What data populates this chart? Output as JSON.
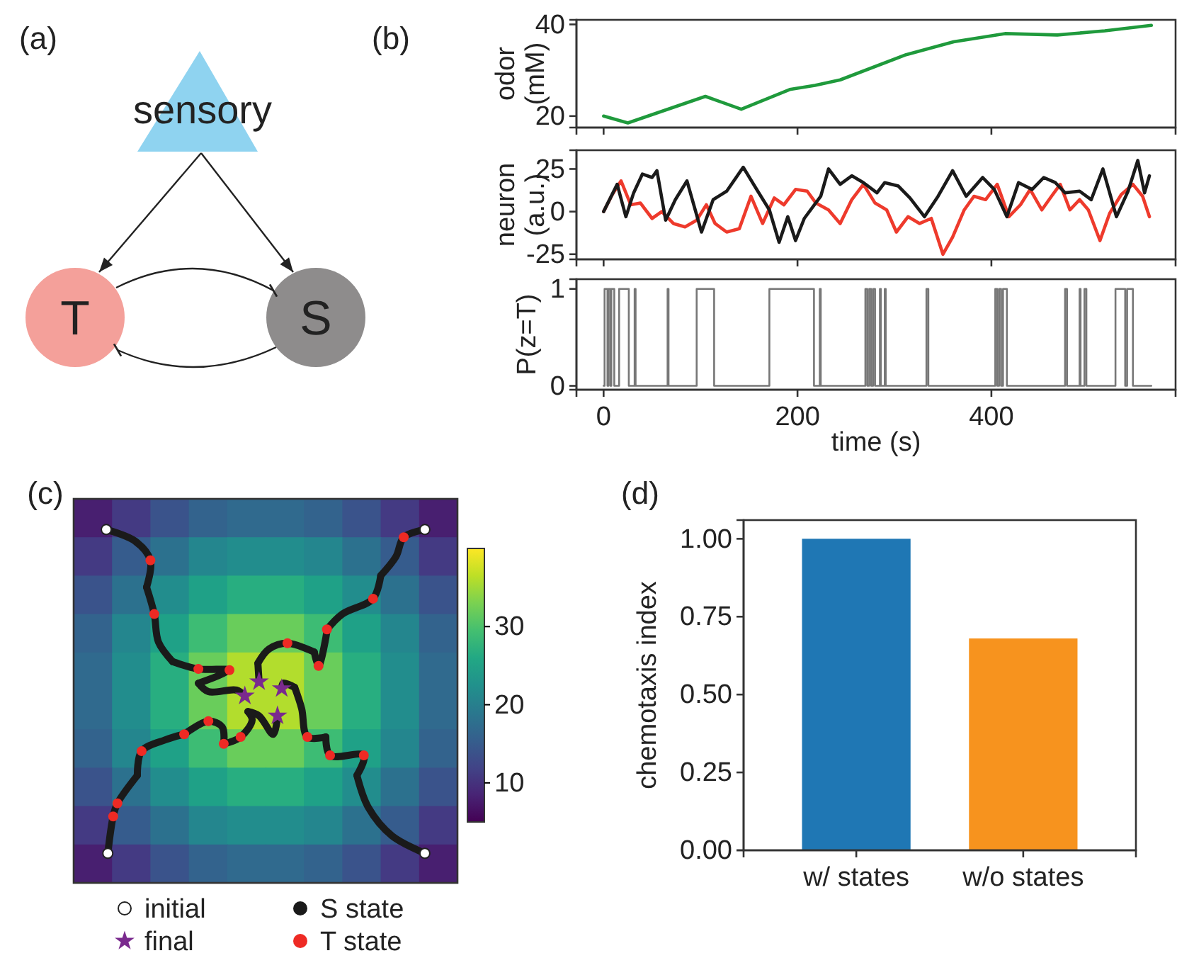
{
  "chart_data": [
    {
      "type": "other",
      "title": "(a)",
      "annotations": [
        "sensory",
        "T",
        "S"
      ]
    },
    {
      "type": "line",
      "title": "(b)",
      "ylabel": "odor (mM)",
      "xlim": [
        -28,
        590
      ],
      "ylim": [
        17.5,
        41
      ],
      "xticks": [
        0,
        200,
        400
      ],
      "yticks": [
        20,
        40
      ],
      "tick_labels": "y",
      "series": [
        {
          "color": "#1f9a3c",
          "x": [
            0,
            25,
            105,
            142,
            192,
            218,
            244,
            312,
            361,
            414,
            468,
            517,
            565
          ],
          "values": [
            20,
            18.5,
            24.3,
            21.5,
            25.8,
            26.7,
            27.9,
            33.4,
            36.2,
            38,
            37.7,
            38.6,
            39.8
          ]
        }
      ]
    },
    {
      "type": "line",
      "ylabel": "neuron (a.u.)",
      "xlim": [
        -28,
        590
      ],
      "ylim": [
        -28,
        36
      ],
      "xticks": [
        0,
        200,
        400
      ],
      "yticks": [
        -25,
        0,
        25
      ],
      "tick_labels": "y",
      "series": [
        {
          "color": "#ee3a2c",
          "x": [
            0,
            9,
            18,
            28,
            38,
            50,
            60,
            72,
            84,
            96,
            106,
            115,
            127,
            140,
            152,
            164,
            176,
            186,
            198,
            210,
            219,
            232,
            244,
            256,
            268,
            280,
            292,
            302,
            314,
            326,
            338,
            350,
            360,
            372,
            382,
            394,
            406,
            418,
            430,
            440,
            452,
            462,
            471,
            481,
            491,
            500,
            512,
            522,
            534,
            546,
            556,
            563
          ],
          "values": [
            0,
            10,
            18,
            4,
            5,
            -4,
            0,
            -7,
            -9,
            -5,
            4,
            -7,
            -12,
            -10,
            9,
            -7,
            8,
            4,
            13,
            12,
            5,
            1,
            -7,
            7,
            16,
            5,
            1,
            -12,
            -3,
            -7,
            -4,
            -25,
            -15,
            1,
            9,
            7,
            16,
            -3,
            4,
            13,
            1,
            9,
            16,
            1,
            7,
            1,
            -17,
            -1,
            10,
            16,
            9,
            -3
          ]
        },
        {
          "color": "#1a1a1a",
          "x": [
            0,
            14,
            23,
            31,
            40,
            50,
            55,
            64,
            74,
            86,
            101,
            113,
            127,
            144,
            159,
            171,
            181,
            190,
            198,
            207,
            224,
            232,
            244,
            256,
            268,
            282,
            290,
            304,
            316,
            331,
            345,
            360,
            374,
            391,
            403,
            416,
            428,
            442,
            454,
            466,
            476,
            491,
            503,
            515,
            529,
            541,
            551,
            558,
            563
          ],
          "values": [
            0,
            16,
            -3,
            11,
            22,
            20,
            24,
            -5,
            7,
            18,
            -12,
            7,
            12,
            26,
            12,
            1,
            -18,
            -3,
            -17,
            -4,
            9,
            25,
            16,
            21,
            17,
            11,
            17,
            15,
            8,
            -3,
            9,
            24,
            9,
            20,
            13,
            -3,
            17,
            13,
            20,
            17,
            11,
            12,
            7,
            25,
            -3,
            12,
            30,
            11,
            21
          ]
        }
      ]
    },
    {
      "type": "step",
      "ylabel": "P(z=T)",
      "xlabel": "time (s)",
      "xlim": [
        -28,
        590
      ],
      "ylim": [
        -0.04,
        1.1
      ],
      "xticks": [
        0,
        200,
        400
      ],
      "yticks": [
        0,
        1
      ],
      "series": [
        {
          "color": "#777777",
          "x": [
            0,
            1,
            4,
            5,
            7,
            8,
            11,
            16,
            26,
            32,
            33,
            66,
            67,
            96,
            114,
            171,
            217,
            223,
            224,
            270,
            272,
            274,
            276,
            278,
            280,
            285,
            286,
            290,
            291,
            333,
            335,
            404,
            406,
            408,
            410,
            412,
            416,
            476,
            478,
            491,
            492,
            496,
            498,
            528,
            538,
            540,
            546,
            565
          ],
          "values": [
            0,
            1,
            0,
            1,
            0,
            1,
            0,
            1,
            0,
            1,
            0,
            1,
            0,
            1,
            0,
            1,
            0,
            1,
            0,
            1,
            0,
            1,
            0,
            1,
            0,
            1,
            0,
            1,
            0,
            1,
            0,
            1,
            0,
            1,
            0,
            1,
            0,
            1,
            0,
            1,
            0,
            1,
            0,
            1,
            0,
            1,
            0,
            0
          ]
        }
      ]
    },
    {
      "type": "heatmap",
      "title": "(c)",
      "categories": [
        null,
        null,
        null,
        null,
        null,
        null,
        null,
        null,
        null,
        null
      ],
      "y_categories": [
        null,
        null,
        null,
        null,
        null,
        null,
        null,
        null,
        null,
        null
      ],
      "clim": [
        5,
        40
      ],
      "cticks": [
        10,
        20,
        30
      ],
      "annotations": [
        "initial",
        "S state",
        "final",
        "T state"
      ],
      "cells": [
        [
          8,
          11,
          14,
          16,
          17,
          17,
          16,
          14,
          11,
          8
        ],
        [
          11,
          15,
          18,
          21,
          22,
          22,
          21,
          18,
          15,
          11
        ],
        [
          14,
          18,
          22,
          25,
          27,
          27,
          25,
          22,
          18,
          14
        ],
        [
          16,
          21,
          25,
          29,
          32,
          32,
          29,
          25,
          21,
          16
        ],
        [
          17,
          22,
          27,
          32,
          36,
          36,
          32,
          27,
          22,
          17
        ],
        [
          17,
          22,
          27,
          32,
          36,
          36,
          32,
          27,
          22,
          17
        ],
        [
          16,
          21,
          25,
          29,
          32,
          32,
          29,
          25,
          21,
          16
        ],
        [
          14,
          18,
          22,
          25,
          27,
          27,
          25,
          22,
          18,
          14
        ],
        [
          11,
          15,
          18,
          21,
          22,
          22,
          21,
          18,
          15,
          11
        ],
        [
          8,
          11,
          14,
          16,
          17,
          17,
          16,
          14,
          11,
          8
        ]
      ]
    },
    {
      "type": "bar",
      "title": "(d)",
      "ylabel": "chemotaxis index",
      "categories": [
        "w/ states",
        "w/o states"
      ],
      "values": [
        1.0,
        0.68
      ],
      "colors": [
        "#1f77b4",
        "#f7931e"
      ],
      "ylim": [
        0,
        1.06
      ],
      "yticks": [
        {
          "value": 0,
          "label": "0.00"
        },
        {
          "value": 0.25,
          "label": "0.25"
        },
        {
          "value": 0.5,
          "label": "0.50"
        },
        {
          "value": 0.75,
          "label": "0.75"
        },
        {
          "value": 1,
          "label": "1.00"
        }
      ]
    }
  ]
}
